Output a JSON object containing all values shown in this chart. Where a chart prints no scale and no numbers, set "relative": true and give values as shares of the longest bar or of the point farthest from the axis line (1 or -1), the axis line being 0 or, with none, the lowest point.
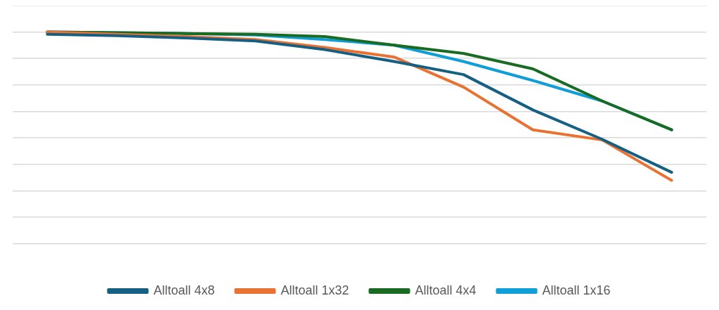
{
  "chart_data": {
    "type": "line",
    "relative": true,
    "categories": [
      null,
      null,
      null,
      null,
      null,
      null,
      null,
      null,
      null,
      null
    ],
    "series": [
      {
        "name": "Alltoall 4x8",
        "color": "#156082",
        "values": [
          0.99,
          0.983,
          0.972,
          0.958,
          0.917,
          0.861,
          0.799,
          0.632,
          0.493,
          0.337
        ]
      },
      {
        "name": "Alltoall 1x32",
        "color": "#e97132",
        "values": [
          1.0,
          0.99,
          0.979,
          0.965,
          0.927,
          0.882,
          0.74,
          0.538,
          0.49,
          0.299
        ]
      },
      {
        "name": "Alltoall 4x4",
        "color": "#196b24",
        "values": [
          1.0,
          0.997,
          0.993,
          0.99,
          0.979,
          0.938,
          0.899,
          0.826,
          0.674,
          0.538
        ]
      },
      {
        "name": "Alltoall 1x16",
        "color": "#0f9ed5",
        "values": [
          1.0,
          0.997,
          0.993,
          0.986,
          0.965,
          0.938,
          0.861,
          0.771,
          0.674,
          0.538
        ]
      }
    ],
    "grid": "y",
    "legend": "bottom",
    "marker": "none",
    "line_style": "solid"
  }
}
